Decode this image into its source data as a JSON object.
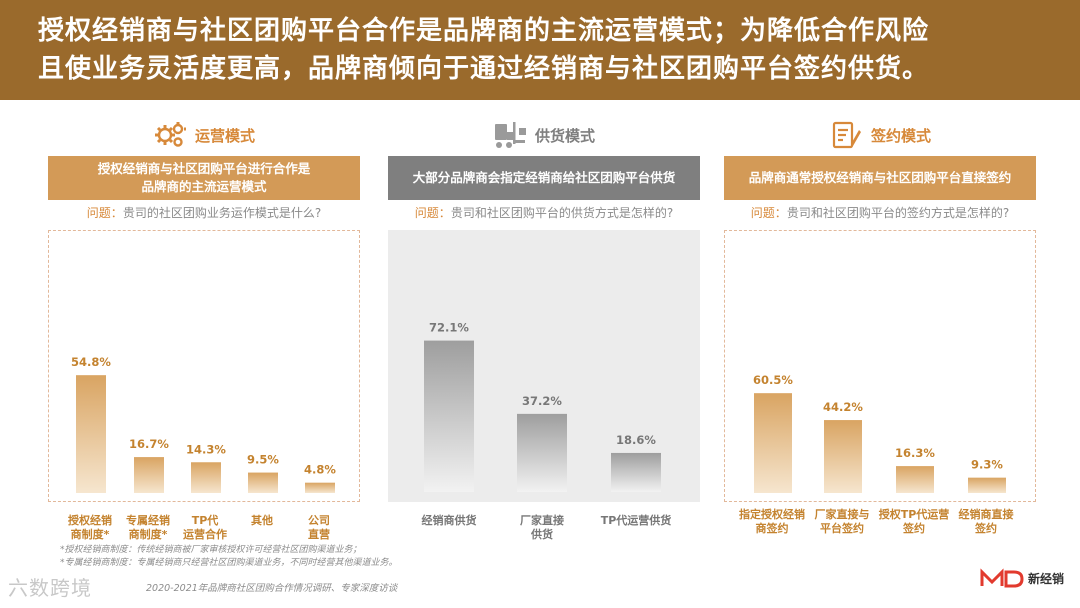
{
  "header": {
    "line1": "授权经销商与社区团购平台合作是品牌商的主流运营模式；为降低合作风险",
    "line2": "且使业务灵活度更高，品牌商倾向于通过经销商与社区团购平台签约供货。"
  },
  "colors": {
    "header_bg": "#9a6a2c",
    "banner_orange": "#d39a57",
    "banner_gray": "#7f7f7f",
    "title_orange": "#d7893a",
    "title_gray": "#7f7f7f",
    "bar_orange": "#e0ad6e",
    "bar_gray": "#bdbdbd"
  },
  "panels": [
    {
      "title": "运营模式",
      "icon": "gears-icon",
      "banner": "授权经销商与社区团购平台进行合作是\n品牌商的主流运营模式",
      "question_label": "问题：",
      "question_text": "贵司的社区团购业务运作模式是什么?"
    },
    {
      "title": "供货模式",
      "icon": "forklift-icon",
      "banner": "大部分品牌商会指定经销商给社区团购平台供货",
      "question_label": "问题：",
      "question_text": "贵司和社区团购平台的供货方式是怎样的?"
    },
    {
      "title": "签约模式",
      "icon": "contract-icon",
      "banner": "品牌商通常授权经销商与社区团购平台直接签约",
      "question_label": "问题：",
      "question_text": "贵司和社区团购平台的签约方式是怎样的?"
    }
  ],
  "chart_data": [
    {
      "type": "bar",
      "categories": [
        "授权经销\n商制度*",
        "专属经销\n商制度*",
        "TP代\n运营合作",
        "其他",
        "公司\n直营"
      ],
      "values": [
        54.8,
        16.7,
        14.3,
        9.5,
        4.8
      ],
      "value_labels": [
        "54.8%",
        "16.7%",
        "14.3%",
        "9.5%",
        "4.8%"
      ],
      "ylim": [
        0,
        100
      ]
    },
    {
      "type": "bar",
      "categories": [
        "经销商供货",
        "厂家直接\n供货",
        "TP代运营供货"
      ],
      "values": [
        72.1,
        37.2,
        18.6
      ],
      "value_labels": [
        "72.1%",
        "37.2%",
        "18.6%"
      ],
      "ylim": [
        0,
        100
      ]
    },
    {
      "type": "bar",
      "categories": [
        "指定授权经销\n商签约",
        "厂家直接与\n平台签约",
        "授权TP代运营\n签约",
        "经销商直接\n签约"
      ],
      "values": [
        60.5,
        44.2,
        16.3,
        9.3
      ],
      "value_labels": [
        "60.5%",
        "44.2%",
        "16.3%",
        "9.3%"
      ],
      "ylim": [
        0,
        100
      ]
    }
  ],
  "footnotes": {
    "note1": "*授权经销商制度：传统经销商被厂家审核授权许可经营社区团购渠道业务；",
    "note2": "*专属经销商制度：专属经销商只经营社区团购渠道业务，不同时经营其他渠道业务。",
    "source": "2020-2021年品牌商社区团购合作情况调研、专家深度访谈"
  },
  "watermark": "六数跨境",
  "logo_text": "新经销"
}
